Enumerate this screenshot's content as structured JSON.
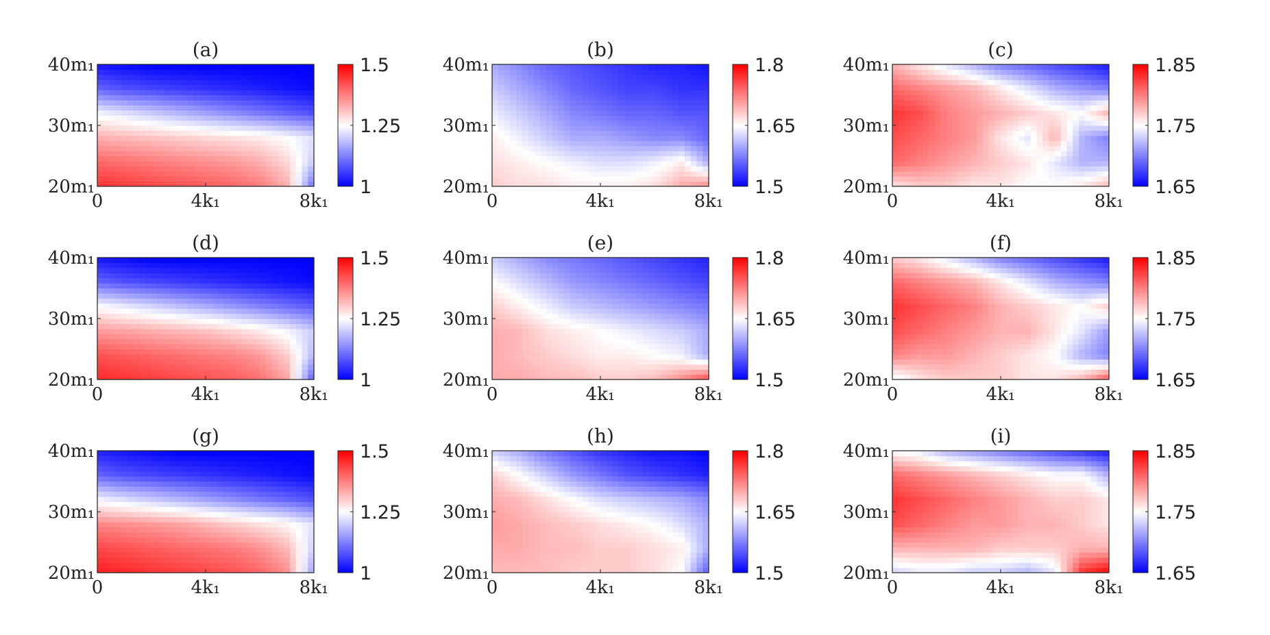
{
  "chart_data": [
    {
      "type": "heatmap",
      "title": "(a)",
      "x_ticks": [
        {
          "value": 0,
          "label": "0"
        },
        {
          "value": 4,
          "label": "4k₁"
        },
        {
          "value": 8,
          "label": "8k₁"
        }
      ],
      "y_ticks": [
        {
          "value": 20,
          "label": "20m₁"
        },
        {
          "value": 30,
          "label": "30m₁"
        },
        {
          "value": 40,
          "label": "40m₁"
        }
      ],
      "xlim": [
        0,
        8
      ],
      "ylim": [
        20,
        40
      ],
      "colorbar": {
        "range": [
          1,
          1.5
        ],
        "ticks": [
          "1",
          "1.25",
          "1.5"
        ],
        "colors": [
          "#0000ff",
          "#ffffff",
          "#ff0000"
        ]
      },
      "z": [
        [
          1.45,
          1.44,
          1.43,
          1.42,
          1.41,
          1.4,
          1.38,
          1.33,
          1.1
        ],
        [
          1.4,
          1.39,
          1.38,
          1.37,
          1.36,
          1.35,
          1.33,
          1.29,
          1.2
        ],
        [
          1.33,
          1.32,
          1.31,
          1.3,
          1.29,
          1.28,
          1.27,
          1.25,
          1.22
        ],
        [
          1.24,
          1.22,
          1.2,
          1.18,
          1.16,
          1.14,
          1.12,
          1.1,
          1.08
        ],
        [
          1.1,
          1.08,
          1.07,
          1.06,
          1.05,
          1.04,
          1.03,
          1.02,
          1.01
        ],
        [
          1.02,
          1.01,
          1.0,
          1.0,
          1.0,
          1.0,
          1.0,
          1.0,
          1.0
        ]
      ]
    },
    {
      "type": "heatmap",
      "title": "(b)",
      "x_ticks": [
        {
          "value": 0,
          "label": "0"
        },
        {
          "value": 4,
          "label": "4k₁"
        },
        {
          "value": 8,
          "label": "8k₁"
        }
      ],
      "y_ticks": [
        {
          "value": 20,
          "label": "20m₁"
        },
        {
          "value": 30,
          "label": "30m₁"
        },
        {
          "value": 40,
          "label": "40m₁"
        }
      ],
      "xlim": [
        0,
        8
      ],
      "ylim": [
        20,
        40
      ],
      "colorbar": {
        "range": [
          1.5,
          1.8
        ],
        "ticks": [
          "1.5",
          "1.65",
          "1.8"
        ],
        "colors": [
          "#0000ff",
          "#ffffff",
          "#ff0000"
        ]
      },
      "z": [
        [
          1.68,
          1.67,
          1.67,
          1.66,
          1.66,
          1.66,
          1.67,
          1.7,
          1.72
        ],
        [
          1.67,
          1.66,
          1.65,
          1.64,
          1.63,
          1.63,
          1.64,
          1.66,
          1.6
        ],
        [
          1.66,
          1.64,
          1.62,
          1.6,
          1.6,
          1.59,
          1.58,
          1.58,
          1.56
        ],
        [
          1.64,
          1.62,
          1.6,
          1.58,
          1.57,
          1.56,
          1.56,
          1.55,
          1.55
        ],
        [
          1.62,
          1.6,
          1.58,
          1.56,
          1.55,
          1.54,
          1.54,
          1.53,
          1.53
        ],
        [
          1.6,
          1.58,
          1.56,
          1.55,
          1.54,
          1.53,
          1.52,
          1.52,
          1.51
        ]
      ]
    },
    {
      "type": "heatmap",
      "title": "(c)",
      "x_ticks": [
        {
          "value": 0,
          "label": "0"
        },
        {
          "value": 4,
          "label": "4k₁"
        },
        {
          "value": 8,
          "label": "8k₁"
        }
      ],
      "y_ticks": [
        {
          "value": 20,
          "label": "20m₁"
        },
        {
          "value": 30,
          "label": "30m₁"
        },
        {
          "value": 40,
          "label": "40m₁"
        }
      ],
      "xlim": [
        0,
        8
      ],
      "ylim": [
        20,
        40
      ],
      "colorbar": {
        "range": [
          1.65,
          1.85
        ],
        "ticks": [
          "1.65",
          "1.75",
          "1.85"
        ],
        "colors": [
          "#0000ff",
          "#ffffff",
          "#ff0000"
        ]
      },
      "z": [
        [
          1.76,
          1.77,
          1.77,
          1.76,
          1.76,
          1.75,
          1.75,
          1.76,
          1.78
        ],
        [
          1.81,
          1.8,
          1.79,
          1.78,
          1.77,
          1.76,
          1.74,
          1.72,
          1.72
        ],
        [
          1.82,
          1.81,
          1.8,
          1.79,
          1.76,
          1.74,
          1.78,
          1.72,
          1.7
        ],
        [
          1.83,
          1.82,
          1.8,
          1.79,
          1.78,
          1.77,
          1.76,
          1.75,
          1.78
        ],
        [
          1.81,
          1.8,
          1.79,
          1.78,
          1.76,
          1.74,
          1.72,
          1.71,
          1.7
        ],
        [
          1.78,
          1.76,
          1.74,
          1.72,
          1.7,
          1.69,
          1.68,
          1.67,
          1.66
        ]
      ]
    },
    {
      "type": "heatmap",
      "title": "(d)",
      "x_ticks": [
        {
          "value": 0,
          "label": "0"
        },
        {
          "value": 4,
          "label": "4k₁"
        },
        {
          "value": 8,
          "label": "8k₁"
        }
      ],
      "y_ticks": [
        {
          "value": 20,
          "label": "20m₁"
        },
        {
          "value": 30,
          "label": "30m₁"
        },
        {
          "value": 40,
          "label": "40m₁"
        }
      ],
      "xlim": [
        0,
        8
      ],
      "ylim": [
        20,
        40
      ],
      "colorbar": {
        "range": [
          1,
          1.5
        ],
        "ticks": [
          "1",
          "1.25",
          "1.5"
        ],
        "colors": [
          "#0000ff",
          "#ffffff",
          "#ff0000"
        ]
      },
      "z": [
        [
          1.46,
          1.45,
          1.44,
          1.43,
          1.42,
          1.41,
          1.39,
          1.34,
          1.08
        ],
        [
          1.42,
          1.41,
          1.4,
          1.39,
          1.38,
          1.37,
          1.35,
          1.3,
          1.18
        ],
        [
          1.35,
          1.34,
          1.33,
          1.32,
          1.31,
          1.29,
          1.27,
          1.24,
          1.2
        ],
        [
          1.25,
          1.23,
          1.21,
          1.19,
          1.17,
          1.15,
          1.13,
          1.11,
          1.09
        ],
        [
          1.1,
          1.08,
          1.07,
          1.06,
          1.05,
          1.04,
          1.03,
          1.02,
          1.01
        ],
        [
          1.02,
          1.01,
          1.0,
          1.0,
          1.0,
          1.0,
          1.0,
          1.0,
          1.0
        ]
      ]
    },
    {
      "type": "heatmap",
      "title": "(e)",
      "x_ticks": [
        {
          "value": 0,
          "label": "0"
        },
        {
          "value": 4,
          "label": "4k₁"
        },
        {
          "value": 8,
          "label": "8k₁"
        }
      ],
      "y_ticks": [
        {
          "value": 20,
          "label": "20m₁"
        },
        {
          "value": 30,
          "label": "30m₁"
        },
        {
          "value": 40,
          "label": "40m₁"
        }
      ],
      "xlim": [
        0,
        8
      ],
      "ylim": [
        20,
        40
      ],
      "colorbar": {
        "range": [
          1.5,
          1.8
        ],
        "ticks": [
          "1.5",
          "1.65",
          "1.8"
        ],
        "colors": [
          "#0000ff",
          "#ffffff",
          "#ff0000"
        ]
      },
      "z": [
        [
          1.7,
          1.7,
          1.69,
          1.69,
          1.68,
          1.68,
          1.69,
          1.72,
          1.76
        ],
        [
          1.7,
          1.69,
          1.68,
          1.67,
          1.66,
          1.66,
          1.65,
          1.64,
          1.6
        ],
        [
          1.7,
          1.69,
          1.67,
          1.66,
          1.65,
          1.64,
          1.63,
          1.62,
          1.6
        ],
        [
          1.68,
          1.66,
          1.64,
          1.62,
          1.61,
          1.6,
          1.59,
          1.58,
          1.57
        ],
        [
          1.65,
          1.63,
          1.61,
          1.59,
          1.58,
          1.57,
          1.56,
          1.55,
          1.54
        ],
        [
          1.62,
          1.6,
          1.58,
          1.57,
          1.56,
          1.55,
          1.54,
          1.53,
          1.52
        ]
      ]
    },
    {
      "type": "heatmap",
      "title": "(f)",
      "x_ticks": [
        {
          "value": 0,
          "label": "0"
        },
        {
          "value": 4,
          "label": "4k₁"
        },
        {
          "value": 8,
          "label": "8k₁"
        }
      ],
      "y_ticks": [
        {
          "value": 20,
          "label": "20m₁"
        },
        {
          "value": 30,
          "label": "30m₁"
        },
        {
          "value": 40,
          "label": "40m₁"
        }
      ],
      "xlim": [
        0,
        8
      ],
      "ylim": [
        20,
        40
      ],
      "colorbar": {
        "range": [
          1.65,
          1.85
        ],
        "ticks": [
          "1.65",
          "1.75",
          "1.85"
        ],
        "colors": [
          "#0000ff",
          "#ffffff",
          "#ff0000"
        ]
      },
      "z": [
        [
          1.74,
          1.76,
          1.77,
          1.77,
          1.77,
          1.76,
          1.76,
          1.78,
          1.82
        ],
        [
          1.8,
          1.79,
          1.79,
          1.78,
          1.77,
          1.76,
          1.75,
          1.72,
          1.7
        ],
        [
          1.82,
          1.81,
          1.8,
          1.79,
          1.78,
          1.78,
          1.76,
          1.74,
          1.71
        ],
        [
          1.83,
          1.82,
          1.81,
          1.8,
          1.78,
          1.77,
          1.76,
          1.75,
          1.77
        ],
        [
          1.81,
          1.8,
          1.79,
          1.78,
          1.76,
          1.74,
          1.72,
          1.71,
          1.7
        ],
        [
          1.77,
          1.76,
          1.74,
          1.72,
          1.7,
          1.69,
          1.68,
          1.67,
          1.66
        ]
      ]
    },
    {
      "type": "heatmap",
      "title": "(g)",
      "x_ticks": [
        {
          "value": 0,
          "label": "0"
        },
        {
          "value": 4,
          "label": "4k₁"
        },
        {
          "value": 8,
          "label": "8k₁"
        }
      ],
      "y_ticks": [
        {
          "value": 20,
          "label": "20m₁"
        },
        {
          "value": 30,
          "label": "30m₁"
        },
        {
          "value": 40,
          "label": "40m₁"
        }
      ],
      "xlim": [
        0,
        8
      ],
      "ylim": [
        20,
        40
      ],
      "colorbar": {
        "range": [
          1,
          1.5
        ],
        "ticks": [
          "1",
          "1.25",
          "1.5"
        ],
        "colors": [
          "#0000ff",
          "#ffffff",
          "#ff0000"
        ]
      },
      "z": [
        [
          1.47,
          1.46,
          1.45,
          1.44,
          1.43,
          1.42,
          1.4,
          1.36,
          1.15
        ],
        [
          1.43,
          1.42,
          1.41,
          1.4,
          1.39,
          1.38,
          1.36,
          1.32,
          1.2
        ],
        [
          1.37,
          1.36,
          1.35,
          1.34,
          1.32,
          1.3,
          1.28,
          1.26,
          1.22
        ],
        [
          1.24,
          1.22,
          1.2,
          1.18,
          1.16,
          1.14,
          1.12,
          1.1,
          1.08
        ],
        [
          1.1,
          1.08,
          1.07,
          1.06,
          1.05,
          1.04,
          1.03,
          1.02,
          1.01
        ],
        [
          1.03,
          1.02,
          1.01,
          1.0,
          1.0,
          1.0,
          1.0,
          1.0,
          1.0
        ]
      ]
    },
    {
      "type": "heatmap",
      "title": "(h)",
      "x_ticks": [
        {
          "value": 0,
          "label": "0"
        },
        {
          "value": 4,
          "label": "4k₁"
        },
        {
          "value": 8,
          "label": "8k₁"
        }
      ],
      "y_ticks": [
        {
          "value": 20,
          "label": "20m₁"
        },
        {
          "value": 30,
          "label": "30m₁"
        },
        {
          "value": 40,
          "label": "40m₁"
        }
      ],
      "xlim": [
        0,
        8
      ],
      "ylim": [
        20,
        40
      ],
      "colorbar": {
        "range": [
          1.5,
          1.8
        ],
        "ticks": [
          "1.5",
          "1.65",
          "1.8"
        ],
        "colors": [
          "#0000ff",
          "#ffffff",
          "#ff0000"
        ]
      },
      "z": [
        [
          1.69,
          1.69,
          1.69,
          1.68,
          1.68,
          1.68,
          1.67,
          1.65,
          1.55
        ],
        [
          1.7,
          1.7,
          1.69,
          1.69,
          1.68,
          1.68,
          1.67,
          1.66,
          1.6
        ],
        [
          1.71,
          1.7,
          1.69,
          1.68,
          1.67,
          1.66,
          1.65,
          1.63,
          1.6
        ],
        [
          1.7,
          1.69,
          1.67,
          1.65,
          1.63,
          1.62,
          1.61,
          1.6,
          1.58
        ],
        [
          1.68,
          1.65,
          1.62,
          1.59,
          1.57,
          1.55,
          1.54,
          1.53,
          1.52
        ],
        [
          1.62,
          1.6,
          1.57,
          1.55,
          1.53,
          1.52,
          1.51,
          1.51,
          1.5
        ]
      ]
    },
    {
      "type": "heatmap",
      "title": "(i)",
      "x_ticks": [
        {
          "value": 0,
          "label": "0"
        },
        {
          "value": 4,
          "label": "4k₁"
        },
        {
          "value": 8,
          "label": "8k₁"
        }
      ],
      "y_ticks": [
        {
          "value": 20,
          "label": "20m₁"
        },
        {
          "value": 30,
          "label": "30m₁"
        },
        {
          "value": 40,
          "label": "40m₁"
        }
      ],
      "xlim": [
        0,
        8
      ],
      "ylim": [
        20,
        40
      ],
      "colorbar": {
        "range": [
          1.65,
          1.85
        ],
        "ticks": [
          "1.65",
          "1.75",
          "1.85"
        ],
        "colors": [
          "#0000ff",
          "#ffffff",
          "#ff0000"
        ]
      },
      "z": [
        [
          1.73,
          1.74,
          1.74,
          1.73,
          1.73,
          1.72,
          1.74,
          1.83,
          1.85
        ],
        [
          1.78,
          1.78,
          1.78,
          1.78,
          1.77,
          1.77,
          1.77,
          1.78,
          1.78
        ],
        [
          1.82,
          1.81,
          1.8,
          1.79,
          1.79,
          1.78,
          1.78,
          1.77,
          1.76
        ],
        [
          1.83,
          1.82,
          1.81,
          1.8,
          1.79,
          1.78,
          1.77,
          1.77,
          1.76
        ],
        [
          1.81,
          1.8,
          1.79,
          1.78,
          1.77,
          1.76,
          1.75,
          1.75,
          1.72
        ],
        [
          1.75,
          1.74,
          1.72,
          1.71,
          1.7,
          1.69,
          1.68,
          1.67,
          1.66
        ]
      ]
    }
  ]
}
